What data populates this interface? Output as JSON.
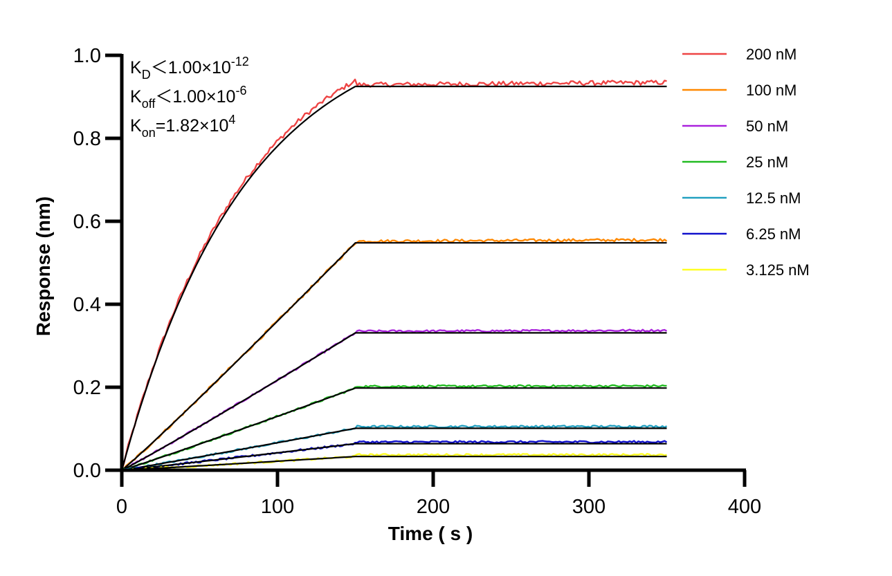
{
  "chart_data": {
    "type": "line",
    "xlabel": "Time ( s )",
    "ylabel": "Response (nm)",
    "xlim": [
      0,
      400
    ],
    "ylim": [
      0,
      1.0
    ],
    "x_ticks": [
      "0",
      "100",
      "200",
      "300",
      "400"
    ],
    "y_ticks": [
      "0.0",
      "0.2",
      "0.4",
      "0.6",
      "0.8",
      "1.0"
    ],
    "association_end": 150,
    "dissociation_end": 350,
    "grid": false,
    "legend_position": "top-right",
    "annotations": [
      {
        "base": "K",
        "sub": "D",
        "rel": "＜",
        "text": "1.00×10",
        "sup": "-12"
      },
      {
        "base": "K",
        "sub": "off",
        "rel": "＜",
        "text": "1.00×10",
        "sup": "-6"
      },
      {
        "base": "K",
        "sub": "on",
        "rel": "=",
        "text": "1.82×10",
        "sup": "4"
      }
    ],
    "fit_color": "#000000",
    "series": [
      {
        "name": "200 nM",
        "color": "#ee4444",
        "plateau": 0.925,
        "shape": "curved"
      },
      {
        "name": "100 nM",
        "color": "#ff8800",
        "plateau": 0.548,
        "shape": "linear"
      },
      {
        "name": "50 nM",
        "color": "#aa22dd",
        "plateau": 0.331,
        "shape": "linear"
      },
      {
        "name": "25 nM",
        "color": "#22bb22",
        "plateau": 0.198,
        "shape": "linear"
      },
      {
        "name": "12.5 nM",
        "color": "#22a0c0",
        "plateau": 0.101,
        "shape": "linear"
      },
      {
        "name": "6.25 nM",
        "color": "#1111cc",
        "plateau": 0.064,
        "shape": "linear"
      },
      {
        "name": "3.125 nM",
        "color": "#ffff22",
        "plateau": 0.033,
        "shape": "linear"
      }
    ]
  }
}
